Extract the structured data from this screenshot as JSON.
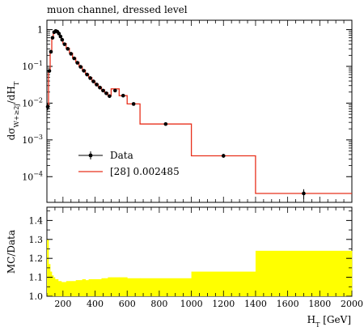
{
  "chart_data": [
    {
      "type": "line",
      "title": "muon channel, dressed level",
      "xlabel": "H_T [GeV]",
      "ylabel": "dσ_{W+≥2j}/dH_T",
      "xlim": [
        100,
        2000
      ],
      "yscale": "log",
      "ylim": [
        2e-05,
        1.8
      ],
      "y_ticks": [
        {
          "value": 1,
          "label": "1"
        },
        {
          "value": 0.1,
          "label": "10^-1"
        },
        {
          "value": 0.01,
          "label": "10^-2"
        },
        {
          "value": 0.001,
          "label": "10^-3"
        },
        {
          "value": 0.0001,
          "label": "10^-4"
        }
      ],
      "legend": {
        "position": "lower-left",
        "entries": [
          {
            "label": "Data",
            "style": "marker-errorbar",
            "color": "#000000"
          },
          {
            "label": "[28] 0.002485",
            "style": "line",
            "color": "#e8301c"
          }
        ]
      },
      "series": [
        {
          "name": "Data",
          "style": "points",
          "x": [
            105,
            115,
            125,
            135,
            145,
            155,
            165,
            175,
            185,
            195,
            210,
            230,
            250,
            270,
            290,
            310,
            330,
            350,
            370,
            390,
            410,
            430,
            450,
            470,
            490,
            525,
            575,
            640,
            840,
            1200,
            1700
          ],
          "y": [
            0.008,
            0.075,
            0.25,
            0.6,
            0.85,
            0.92,
            0.88,
            0.78,
            0.65,
            0.53,
            0.4,
            0.3,
            0.22,
            0.165,
            0.125,
            0.097,
            0.076,
            0.06,
            0.048,
            0.039,
            0.032,
            0.0265,
            0.022,
            0.0185,
            0.0155,
            0.022,
            0.016,
            0.0095,
            0.0027,
            0.00037,
            3.5e-05
          ],
          "yerr_rel": [
            0.2,
            0.05,
            0.03,
            0.02,
            0.02,
            0.02,
            0.02,
            0.02,
            0.02,
            0.02,
            0.02,
            0.02,
            0.02,
            0.02,
            0.02,
            0.03,
            0.03,
            0.03,
            0.03,
            0.03,
            0.04,
            0.04,
            0.04,
            0.04,
            0.05,
            0.05,
            0.06,
            0.06,
            0.08,
            0.12,
            0.3
          ]
        },
        {
          "name": "[28] 0.002485",
          "style": "step",
          "color": "#e8301c",
          "bins": [
            100,
            110,
            120,
            130,
            140,
            150,
            160,
            170,
            180,
            190,
            200,
            220,
            240,
            260,
            280,
            300,
            320,
            340,
            360,
            380,
            400,
            420,
            440,
            460,
            480,
            500,
            550,
            600,
            680,
            1000,
            1400,
            2000
          ],
          "values": [
            0.0085,
            0.078,
            0.26,
            0.62,
            0.88,
            0.95,
            0.91,
            0.8,
            0.67,
            0.55,
            0.42,
            0.31,
            0.23,
            0.17,
            0.13,
            0.1,
            0.079,
            0.062,
            0.05,
            0.04,
            0.033,
            0.0275,
            0.023,
            0.0192,
            0.016,
            0.0245,
            0.016,
            0.0095,
            0.0027,
            0.00037,
            3.5e-05
          ]
        }
      ]
    },
    {
      "type": "area",
      "ylabel": "MC/Data",
      "xlabel": "H_T [GeV]",
      "xlim": [
        100,
        2000
      ],
      "ylim": [
        1.0,
        1.47
      ],
      "x_ticks": [
        200,
        400,
        600,
        800,
        1000,
        1200,
        1400,
        1600,
        1800,
        2000
      ],
      "y_ticks": [
        1.0,
        1.1,
        1.2,
        1.3,
        1.4
      ],
      "band_color": "#ffff00",
      "series": [
        {
          "name": "",
          "bins": [
            100,
            110,
            120,
            130,
            140,
            150,
            160,
            170,
            180,
            190,
            200,
            220,
            240,
            260,
            280,
            300,
            320,
            340,
            360,
            380,
            400,
            420,
            440,
            460,
            480,
            500,
            550,
            600,
            680,
            1000,
            1400,
            2000
          ],
          "band_low": [
            1.0,
            1.0,
            1.0,
            1.0,
            1.0,
            1.0,
            1.0,
            1.0,
            1.0,
            1.0,
            1.0,
            1.0,
            1.0,
            1.0,
            1.0,
            1.0,
            1.0,
            1.0,
            1.0,
            1.0,
            1.0,
            1.0,
            1.0,
            1.0,
            1.0,
            1.0,
            1.0,
            1.0,
            1.0,
            1.0,
            1.0
          ],
          "band_high": [
            1.3,
            1.17,
            1.13,
            1.11,
            1.1,
            1.09,
            1.09,
            1.08,
            1.08,
            1.075,
            1.075,
            1.08,
            1.08,
            1.08,
            1.085,
            1.085,
            1.09,
            1.085,
            1.09,
            1.09,
            1.09,
            1.09,
            1.095,
            1.095,
            1.1,
            1.1,
            1.1,
            1.095,
            1.095,
            1.13,
            1.24
          ]
        }
      ]
    }
  ]
}
